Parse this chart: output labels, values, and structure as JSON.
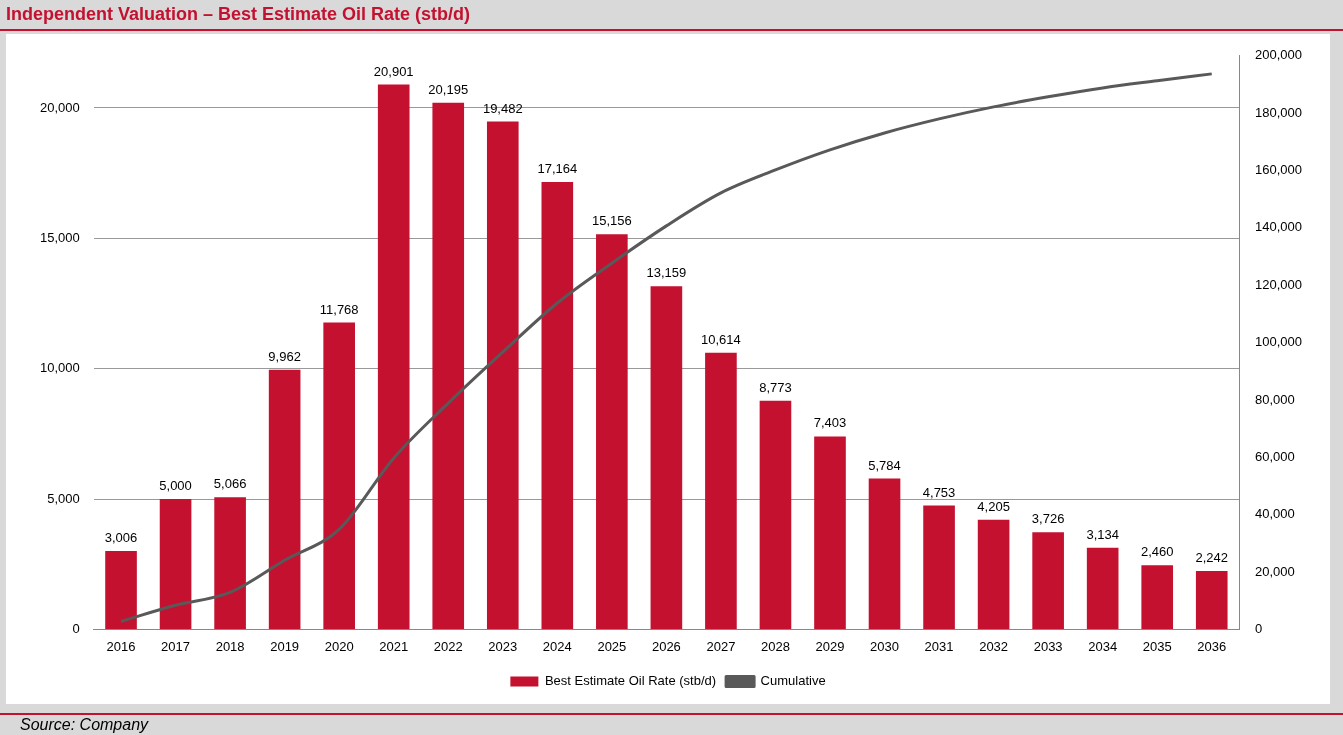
{
  "chart_data": {
    "type": "bar",
    "title": "Independent Valuation – Best Estimate Oil Rate (stb/d)",
    "categories": [
      "2016",
      "2017",
      "2018",
      "2019",
      "2020",
      "2021",
      "2022",
      "2023",
      "2024",
      "2025",
      "2026",
      "2027",
      "2028",
      "2029",
      "2030",
      "2031",
      "2032",
      "2033",
      "2034",
      "2035",
      "2036"
    ],
    "series": [
      {
        "name": "Best Estimate Oil Rate (stb/d)",
        "color": "#c3112f",
        "values": [
          3006,
          5000,
          5066,
          9962,
          11768,
          20901,
          20195,
          19482,
          17164,
          15156,
          13159,
          10614,
          8773,
          7403,
          5784,
          4753,
          4205,
          3726,
          3134,
          2460,
          2242
        ],
        "value_labels": [
          "3,006",
          "5,000",
          "5,066",
          "9,962",
          "11,768",
          "20,901",
          "20,195",
          "19,482",
          "17,164",
          "15,156",
          "13,159",
          "10,614",
          "8,773",
          "7,403",
          "5,784",
          "4,753",
          "4,205",
          "3,726",
          "3,134",
          "2,460",
          "2,242"
        ]
      },
      {
        "name": "Cumulative",
        "type": "line",
        "axis": "y2",
        "color": "#595959",
        "values": [
          2800,
          8400,
          12900,
          24100,
          34900,
          59700,
          78900,
          96700,
          113800,
          127700,
          140700,
          152200,
          160200,
          167200,
          173100,
          178000,
          182200,
          185700,
          188800,
          191300,
          193700
        ]
      }
    ],
    "ylim": [
      0,
      22000
    ],
    "yticks": [
      {
        "value": 0,
        "label": "0"
      },
      {
        "value": 5000,
        "label": "5,000"
      },
      {
        "value": 10000,
        "label": "10,000"
      },
      {
        "value": 15000,
        "label": "15,000"
      },
      {
        "value": 20000,
        "label": "20,000"
      }
    ],
    "y2lim": [
      0,
      200000
    ],
    "y2ticks": [
      {
        "value": 0,
        "label": "0"
      },
      {
        "value": 20000,
        "label": "20,000"
      },
      {
        "value": 40000,
        "label": "40,000"
      },
      {
        "value": 60000,
        "label": "60,000"
      },
      {
        "value": 80000,
        "label": "80,000"
      },
      {
        "value": 100000,
        "label": "100,000"
      },
      {
        "value": 120000,
        "label": "120,000"
      },
      {
        "value": 140000,
        "label": "140,000"
      },
      {
        "value": 160000,
        "label": "160,000"
      },
      {
        "value": 180000,
        "label": "180,000"
      },
      {
        "value": 200000,
        "label": "200,000"
      }
    ],
    "grid": "y",
    "legend": "bottom",
    "marker": "none",
    "line_style": "solid",
    "annotations": [
      "Source: Company"
    ]
  }
}
